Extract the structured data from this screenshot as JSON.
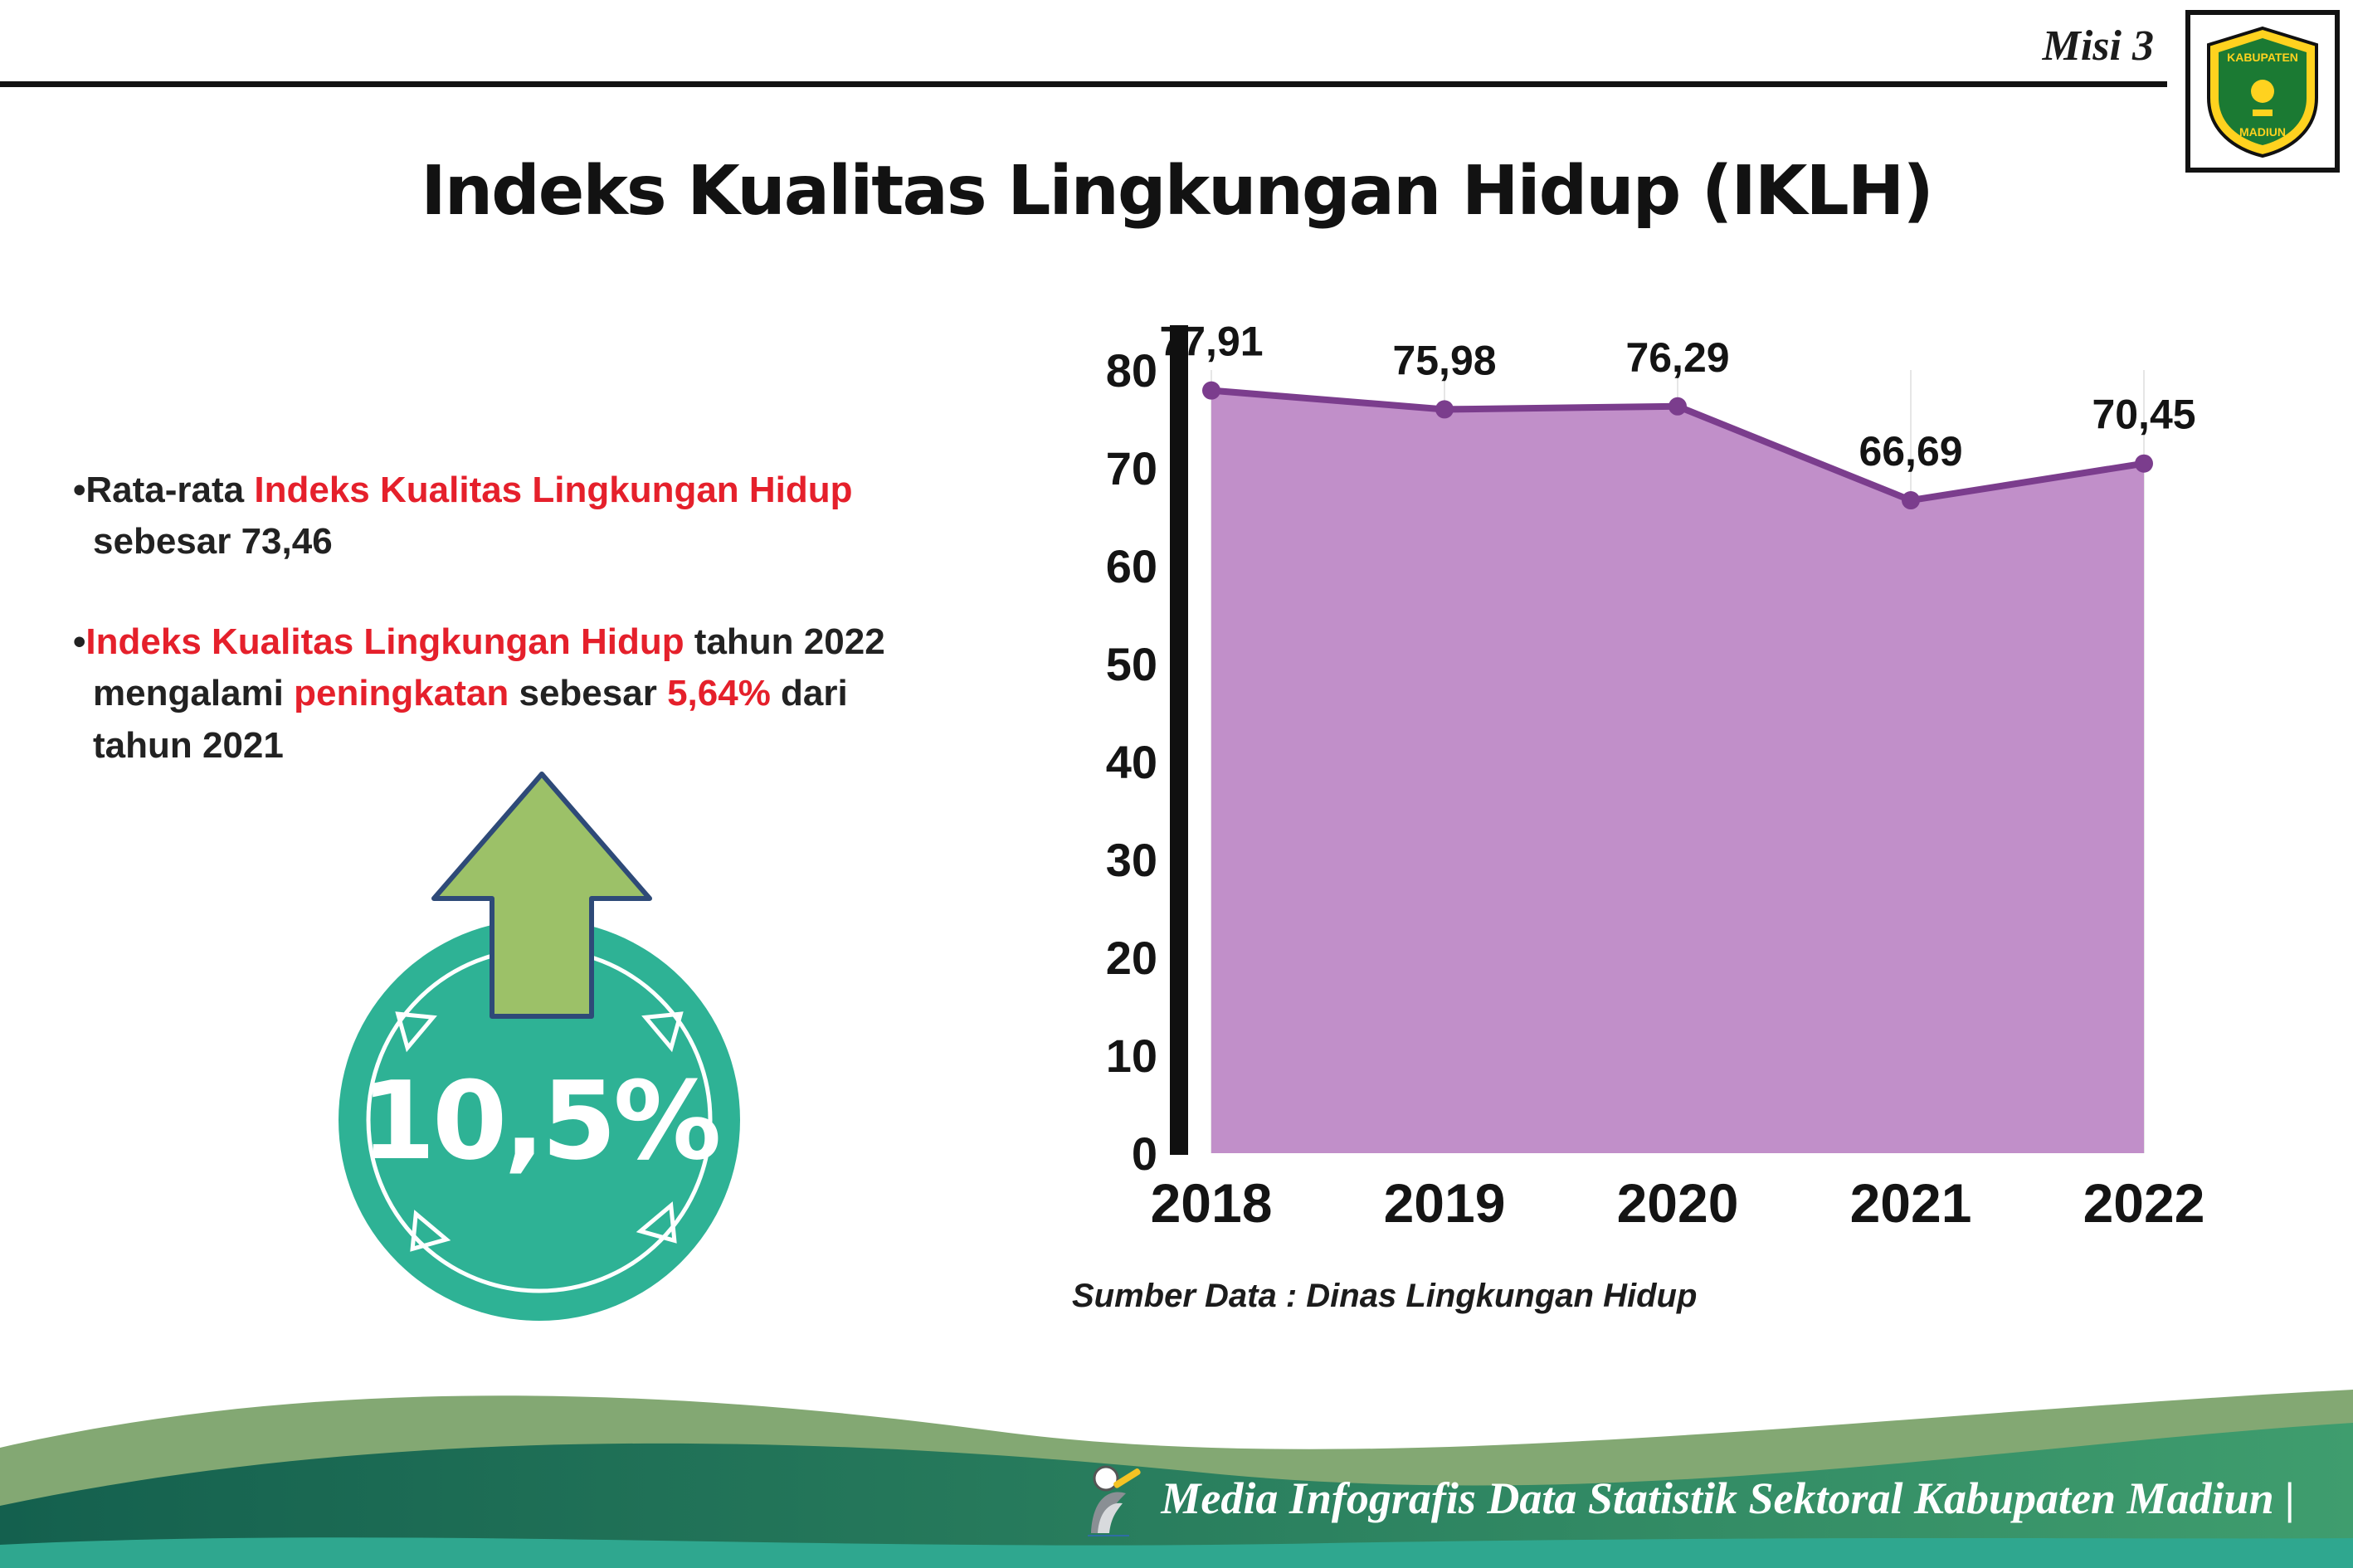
{
  "header": {
    "misi_label": "Misi 3",
    "title": "Indeks Kualitas Lingkungan Hidup (IKLH)",
    "logo_line1": "KABUPATEN",
    "logo_line2": "MADIUN"
  },
  "bullets": {
    "b1": {
      "marker": "•",
      "t1": "Rata-rata ",
      "r1": "Indeks Kualitas Lingkungan Hidup",
      "t2": "sebesar 73,46"
    },
    "b2": {
      "marker": "•",
      "r1": "Indeks Kualitas Lingkungan Hidup",
      "t1": " tahun 2022",
      "t2": "mengalami ",
      "r2": "peningkatan",
      "t3": " sebesar ",
      "r3": "5,64%",
      "t4": " dari",
      "t5": "tahun 2021"
    }
  },
  "badge": {
    "value": "10,5%"
  },
  "chart_data": {
    "type": "area",
    "title": "Indeks Kualitas Lingkungan Hidup (IKLH) 2018-2022",
    "categories": [
      "2018",
      "2019",
      "2020",
      "2021",
      "2022"
    ],
    "values": [
      77.91,
      75.98,
      76.29,
      66.69,
      70.45
    ],
    "value_labels": [
      "77,91",
      "75,98",
      "76,29",
      "66,69",
      "70,45"
    ],
    "ylim": [
      0,
      80
    ],
    "ytick_step": 10,
    "legend": "none",
    "grid": "faint-vertical",
    "fill_color": "#c18fc9",
    "line_color": "#7b3d8d",
    "source": "Sumber Data : Dinas Lingkungan Hidup"
  },
  "footer": {
    "credit": "Media Infografis Data Statistik Sektoral Kabupaten Madiun |"
  },
  "colors": {
    "accent_red": "#e5202b",
    "badge_teal": "#2eb295",
    "arrow_green": "#9cc168",
    "footer_sage": "#83a873",
    "footer_dark": "#14604e",
    "footer_teal": "#2fa78f"
  }
}
